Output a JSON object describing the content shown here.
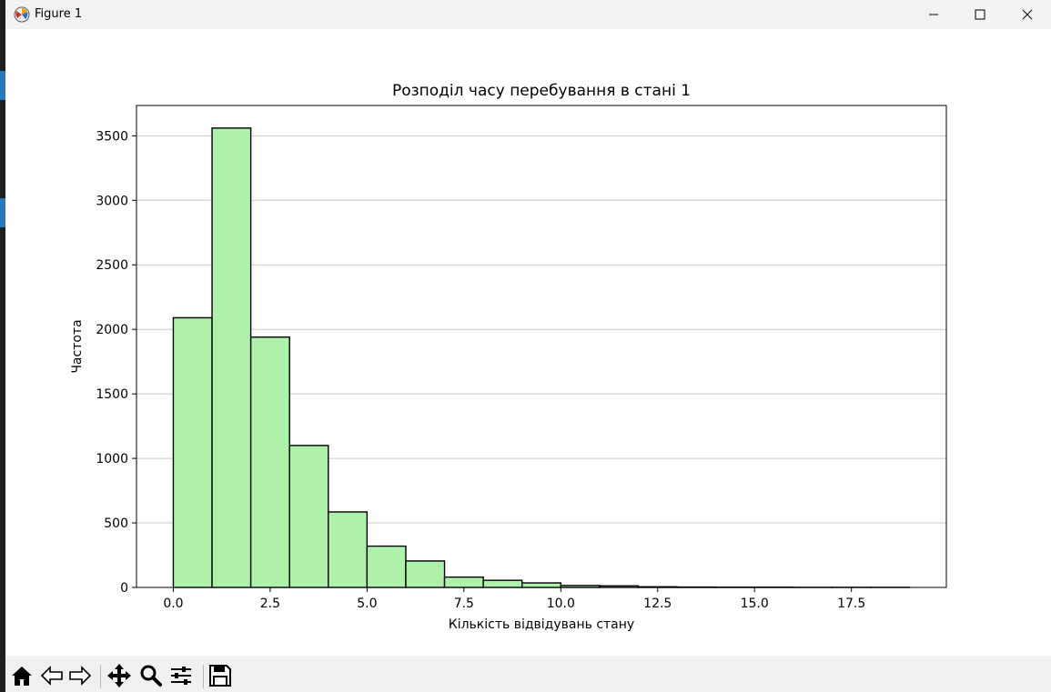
{
  "window": {
    "title": "Figure 1"
  },
  "icons": {
    "app": "matplotlib-figure-icon",
    "minimize": "minimize-icon",
    "maximize": "maximize-icon",
    "close": "close-icon"
  },
  "toolbar": {
    "buttons": [
      {
        "name": "home-button",
        "icon": "home-icon"
      },
      {
        "name": "back-button",
        "icon": "back-arrow-icon"
      },
      {
        "name": "forward-button",
        "icon": "forward-arrow-icon"
      },
      {
        "name": "pan-button",
        "icon": "move-icon"
      },
      {
        "name": "zoom-button",
        "icon": "magnifier-icon"
      },
      {
        "name": "configure-subplots-button",
        "icon": "sliders-icon"
      },
      {
        "name": "save-button",
        "icon": "floppy-disk-icon"
      }
    ]
  },
  "colors": {
    "bar_fill": "#aef1ab",
    "bar_edge": "#000000",
    "grid": "#c8c8c8"
  },
  "chart_data": {
    "type": "bar",
    "title": "Розподіл часу перебування в стані 1",
    "xlabel": "Кількість відвідувань стану",
    "ylabel": "Частота",
    "bin_edges": [
      0,
      1,
      2,
      3,
      4,
      5,
      6,
      7,
      8,
      9,
      10,
      11,
      12,
      13,
      14,
      15,
      16,
      17,
      18,
      19
    ],
    "values": [
      2090,
      3560,
      1940,
      1100,
      585,
      320,
      205,
      80,
      55,
      35,
      15,
      12,
      5,
      3,
      2,
      2,
      1,
      1,
      1
    ],
    "xlim": [
      -0.95,
      19.95
    ],
    "ylim": [
      0,
      3735
    ],
    "xticks": [
      0.0,
      2.5,
      5.0,
      7.5,
      10.0,
      12.5,
      15.0,
      17.5
    ],
    "xtick_labels": [
      "0.0",
      "2.5",
      "5.0",
      "7.5",
      "10.0",
      "12.5",
      "15.0",
      "17.5"
    ],
    "yticks": [
      0,
      500,
      1000,
      1500,
      2000,
      2500,
      3000,
      3500
    ],
    "ytick_labels": [
      "0",
      "500",
      "1000",
      "1500",
      "2000",
      "2500",
      "3000",
      "3500"
    ],
    "grid": "y-axis horizontal lines"
  }
}
